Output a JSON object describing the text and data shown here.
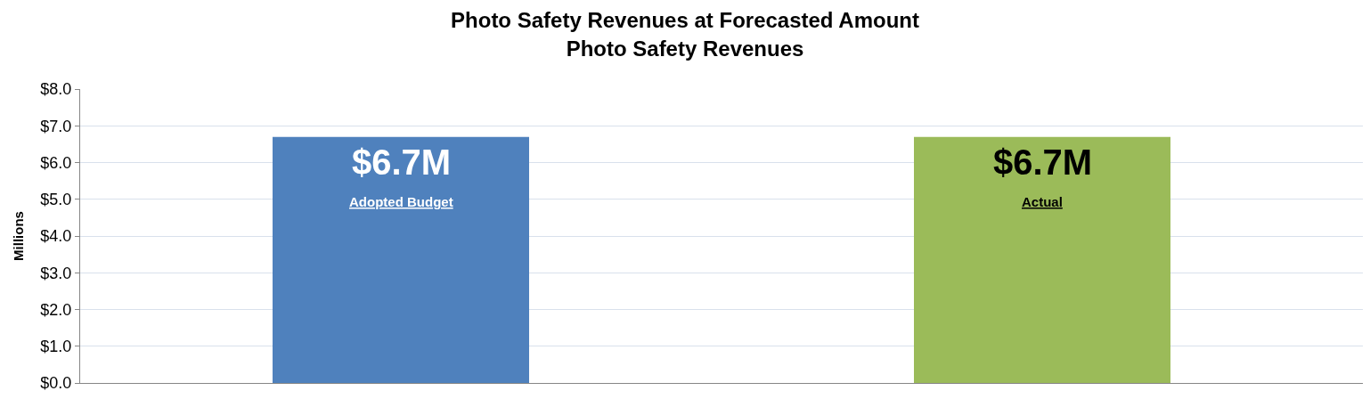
{
  "chart_data": {
    "type": "bar",
    "title": "Photo Safety Revenues at Forecasted Amount",
    "subtitle": "Photo Safety Revenues",
    "ylabel": "Millions",
    "categories": [
      "Adopted Budget",
      "Actual"
    ],
    "values": [
      6.7,
      6.7
    ],
    "colors": [
      "#4f81bd",
      "#9bbb59"
    ],
    "value_labels": [
      "$6.7M",
      "$6.7M"
    ],
    "ylim": [
      0,
      8
    ],
    "yticks": [
      {
        "value": 0,
        "label": "$0.0"
      },
      {
        "value": 1,
        "label": "$1.0"
      },
      {
        "value": 2,
        "label": "$2.0"
      },
      {
        "value": 3,
        "label": "$3.0"
      },
      {
        "value": 4,
        "label": "$4.0"
      },
      {
        "value": 5,
        "label": "$5.0"
      },
      {
        "value": 6,
        "label": "$6.0"
      },
      {
        "value": 7,
        "label": "$7.0"
      },
      {
        "value": 8,
        "label": "$8.0"
      }
    ],
    "grid": "y"
  }
}
